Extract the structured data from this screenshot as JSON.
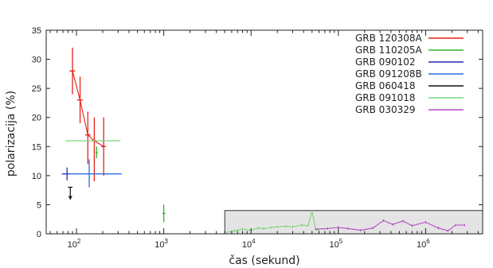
{
  "chart_data": {
    "type": "scatter",
    "xlabel": "čas (sekund)",
    "ylabel": "polarizacija (%)",
    "xscale": "log",
    "xlim": [
      45,
      4500000
    ],
    "ylim": [
      0,
      35
    ],
    "y_ticks": [
      0,
      5,
      10,
      15,
      20,
      25,
      30,
      35
    ],
    "x_tick_labels": [
      {
        "value": 100,
        "base": "10",
        "exp": "2"
      },
      {
        "value": 1000,
        "base": "10",
        "exp": "3"
      },
      {
        "value": 10000,
        "base": "10",
        "exp": "4"
      },
      {
        "value": 100000,
        "base": "10",
        "exp": "5"
      },
      {
        "value": 1000000,
        "base": "10",
        "exp": "6"
      }
    ],
    "legend_position": "top-right",
    "series": [
      {
        "name": "GRB 120308A",
        "color": "#e8211b",
        "points": [
          {
            "x": 90,
            "y": 28,
            "xerr": [
              83,
              97
            ],
            "yerr": [
              24,
              32
            ]
          },
          {
            "x": 110,
            "y": 23,
            "xerr": [
              102,
              118
            ],
            "yerr": [
              19,
              27
            ]
          },
          {
            "x": 135,
            "y": 17,
            "xerr": [
              126,
              145
            ],
            "yerr": [
              12,
              21
            ]
          },
          {
            "x": 160,
            "y": 16,
            "xerr": [
              150,
              170
            ],
            "yerr": [
              9,
              20
            ]
          },
          {
            "x": 205,
            "y": 15,
            "xerr": [
              192,
              218
            ],
            "yerr": [
              10,
              20
            ]
          }
        ],
        "connected": true
      },
      {
        "name": "GRB 110205A",
        "color": "#2db52b",
        "points": [
          {
            "x": 1000,
            "y": 3.5,
            "xerr": [
              960,
              1040
            ],
            "yerr": [
              2,
              5
            ]
          },
          {
            "x": 170,
            "y": 14,
            "xerr": [
              165,
              175
            ],
            "yerr": [
              13,
              15
            ]
          }
        ],
        "connected": false
      },
      {
        "name": "GRB 090102",
        "color": "#2a2ab3",
        "points": [
          {
            "x": 78,
            "y": 10.3,
            "xerr": [
              68,
              88
            ],
            "yerr": [
              9.2,
              11.4
            ]
          }
        ],
        "connected": false
      },
      {
        "name": "GRB 091208B",
        "color": "#2b6be0",
        "points": [
          {
            "x": 140,
            "y": 10.3,
            "xerr": [
              80,
              330
            ],
            "yerr": [
              8,
              12.8
            ]
          }
        ],
        "connected": false
      },
      {
        "name": "GRB 060418",
        "color": "#111111",
        "points": [
          {
            "x": 85,
            "y": 8,
            "xerr": [
              80,
              90
            ],
            "upper_limit": true
          }
        ],
        "connected": false
      },
      {
        "name": "GRB 091018",
        "color": "#7ad67a",
        "points": [
          {
            "x": 150,
            "y": 16,
            "xerr": [
              75,
              320
            ]
          },
          {
            "x": 5000,
            "y": 0.2
          },
          {
            "x": 6500,
            "y": 0.5
          },
          {
            "x": 8000,
            "y": 0.8
          },
          {
            "x": 10000,
            "y": 0.6
          },
          {
            "x": 12000,
            "y": 1.0
          },
          {
            "x": 14000,
            "y": 0.9
          },
          {
            "x": 17000,
            "y": 1.1
          },
          {
            "x": 20000,
            "y": 1.2
          },
          {
            "x": 25000,
            "y": 1.3
          },
          {
            "x": 30000,
            "y": 1.2
          },
          {
            "x": 38000,
            "y": 1.5
          },
          {
            "x": 45000,
            "y": 1.4
          },
          {
            "x": 50000,
            "y": 3.8
          },
          {
            "x": 55000,
            "y": 0.8
          },
          {
            "x": 60000,
            "y": 0.6
          }
        ],
        "connected": true
      },
      {
        "name": "GRB 030329",
        "color": "#b04cc0",
        "points": [
          {
            "x": 55000,
            "y": 0.8
          },
          {
            "x": 75000,
            "y": 0.9
          },
          {
            "x": 100000,
            "y": 1.1
          },
          {
            "x": 130000,
            "y": 0.9
          },
          {
            "x": 180000,
            "y": 0.6
          },
          {
            "x": 250000,
            "y": 1.0
          },
          {
            "x": 330000,
            "y": 2.3
          },
          {
            "x": 420000,
            "y": 1.6
          },
          {
            "x": 550000,
            "y": 2.2
          },
          {
            "x": 700000,
            "y": 1.4
          },
          {
            "x": 1000000,
            "y": 2.0
          },
          {
            "x": 1400000,
            "y": 1.0
          },
          {
            "x": 1800000,
            "y": 0.5
          },
          {
            "x": 2200000,
            "y": 1.5
          },
          {
            "x": 2800000,
            "y": 1.5
          }
        ],
        "connected": true
      }
    ],
    "inset_box": {
      "x0": 5000,
      "x1": 4500000,
      "y0": 0,
      "y1": 4
    }
  }
}
